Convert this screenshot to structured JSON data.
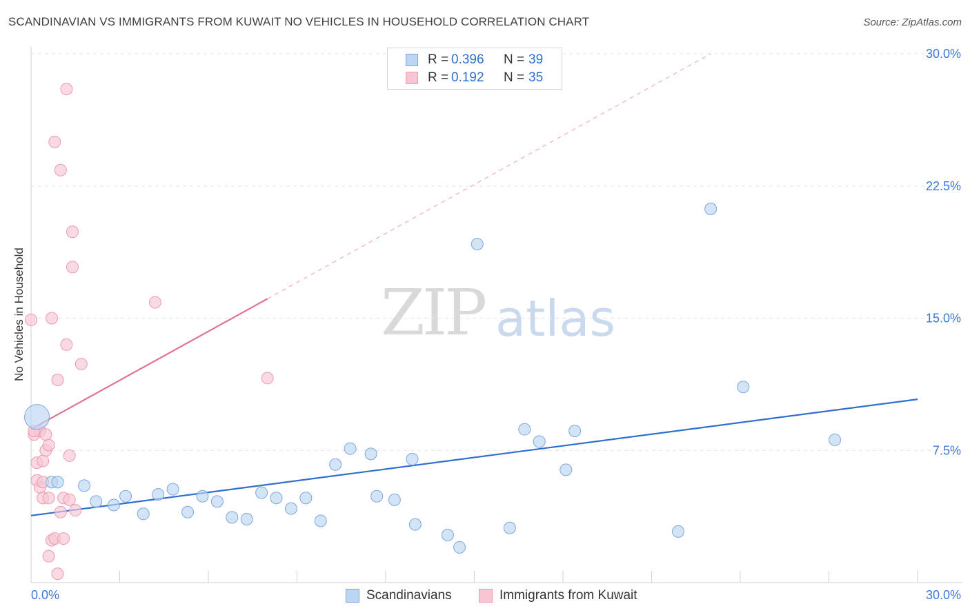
{
  "title": "SCANDINAVIAN VS IMMIGRANTS FROM KUWAIT NO VEHICLES IN HOUSEHOLD CORRELATION CHART",
  "source": "Source: ZipAtlas.com",
  "watermark": {
    "zip": "ZIP",
    "atlas": "atlas"
  },
  "legend": {
    "rows": [
      {
        "r_label": "R =",
        "r_value": "0.396",
        "n_label": "N =",
        "n_value": "39",
        "fill": "#bcd5f2",
        "stroke": "#7ba7de"
      },
      {
        "r_label": "R =",
        "r_value": "0.192",
        "n_label": "N =",
        "n_value": "35",
        "fill": "#f8c6d3",
        "stroke": "#ec9ab0"
      }
    ]
  },
  "bottom_legend": [
    {
      "label": "Scandinavians",
      "fill": "#bcd5f2",
      "stroke": "#7ba7de"
    },
    {
      "label": "Immigrants from Kuwait",
      "fill": "#f8c6d3",
      "stroke": "#ec9ab0"
    }
  ],
  "colors": {
    "blue_fill": "#bcd5f2",
    "blue_stroke": "#7ba7de",
    "blue_line": "#2e6fd0",
    "pink_fill": "#f8c6d3",
    "pink_stroke": "#ec9ab0",
    "pink_line": "#e0719a",
    "grid": "#e3e3e3",
    "tick_label": "#3b78d8"
  },
  "chart_data": {
    "type": "scatter",
    "title": "SCANDINAVIAN VS IMMIGRANTS FROM KUWAIT NO VEHICLES IN HOUSEHOLD CORRELATION CHART",
    "xlabel": "",
    "ylabel": "No Vehicles in Household",
    "xlim": [
      0,
      30
    ],
    "ylim": [
      0,
      30
    ],
    "x_tick_labels": [
      "0.0%",
      "30.0%"
    ],
    "y_tick_labels": [
      "7.5%",
      "15.0%",
      "22.5%",
      "30.0%"
    ],
    "y_ticks": [
      7.5,
      15.0,
      22.5,
      30.0
    ],
    "grid": true,
    "legend_position": "top-center",
    "series": [
      {
        "name": "Scandinavians",
        "color": "#bcd5f2",
        "points": [
          [
            0.2,
            9.4,
            1
          ],
          [
            0.7,
            5.7,
            0
          ],
          [
            1.8,
            5.5,
            0
          ],
          [
            2.2,
            4.6,
            0
          ],
          [
            2.8,
            4.4,
            0
          ],
          [
            3.2,
            4.9,
            0
          ],
          [
            3.8,
            3.9,
            0
          ],
          [
            4.3,
            5.0,
            0
          ],
          [
            4.8,
            5.3,
            0
          ],
          [
            5.3,
            4.0,
            0
          ],
          [
            5.8,
            4.9,
            0
          ],
          [
            6.3,
            4.6,
            0
          ],
          [
            6.8,
            3.7,
            0
          ],
          [
            7.3,
            3.6,
            0
          ],
          [
            7.8,
            5.1,
            0
          ],
          [
            8.3,
            4.8,
            0
          ],
          [
            8.8,
            4.2,
            0
          ],
          [
            9.3,
            4.8,
            0
          ],
          [
            9.8,
            3.5,
            0
          ],
          [
            10.3,
            6.7,
            0
          ],
          [
            10.8,
            7.6,
            0
          ],
          [
            11.5,
            7.3,
            0
          ],
          [
            11.7,
            4.9,
            0
          ],
          [
            12.3,
            4.7,
            0
          ],
          [
            12.9,
            7.0,
            0
          ],
          [
            13.0,
            3.3,
            0
          ],
          [
            14.1,
            2.7,
            0
          ],
          [
            14.5,
            2.0,
            0
          ],
          [
            15.1,
            19.2,
            0
          ],
          [
            16.2,
            3.1,
            0
          ],
          [
            16.7,
            8.7,
            0
          ],
          [
            17.2,
            8.0,
            0
          ],
          [
            18.1,
            6.4,
            0
          ],
          [
            18.4,
            8.6,
            0
          ],
          [
            21.9,
            2.9,
            0
          ],
          [
            23.0,
            21.2,
            0
          ],
          [
            24.1,
            11.1,
            0
          ],
          [
            27.2,
            8.1,
            0
          ],
          [
            0.9,
            5.7,
            0
          ]
        ],
        "trend": {
          "x": [
            0,
            30
          ],
          "y": [
            3.8,
            10.4
          ]
        }
      },
      {
        "name": "Immigrants from Kuwait",
        "color": "#f8c6d3",
        "points": [
          [
            0.0,
            14.9,
            0
          ],
          [
            0.1,
            8.4,
            0
          ],
          [
            0.2,
            6.8,
            0
          ],
          [
            0.2,
            5.8,
            0
          ],
          [
            0.3,
            5.4,
            0
          ],
          [
            0.3,
            8.6,
            0
          ],
          [
            0.4,
            6.9,
            0
          ],
          [
            0.4,
            5.7,
            0
          ],
          [
            0.4,
            4.8,
            0
          ],
          [
            0.5,
            8.4,
            0
          ],
          [
            0.5,
            7.5,
            0
          ],
          [
            0.6,
            7.8,
            0
          ],
          [
            0.6,
            4.8,
            0
          ],
          [
            0.6,
            1.5,
            0
          ],
          [
            0.7,
            2.4,
            0
          ],
          [
            0.7,
            15.0,
            0
          ],
          [
            0.8,
            2.5,
            0
          ],
          [
            0.8,
            25.0,
            0
          ],
          [
            0.9,
            11.5,
            0
          ],
          [
            0.9,
            0.5,
            0
          ],
          [
            1.0,
            4.0,
            0
          ],
          [
            1.0,
            23.4,
            0
          ],
          [
            1.1,
            2.5,
            0
          ],
          [
            1.1,
            4.8,
            0
          ],
          [
            1.2,
            13.5,
            0
          ],
          [
            1.2,
            28.0,
            0
          ],
          [
            1.3,
            4.7,
            0
          ],
          [
            1.3,
            7.2,
            0
          ],
          [
            1.4,
            19.9,
            0
          ],
          [
            1.4,
            17.9,
            0
          ],
          [
            1.5,
            4.1,
            0
          ],
          [
            1.7,
            12.4,
            0
          ],
          [
            4.2,
            15.9,
            0
          ],
          [
            8.0,
            11.6,
            0
          ],
          [
            0.1,
            8.6,
            0
          ]
        ],
        "trend": {
          "x": [
            0,
            8
          ],
          "y": [
            8.7,
            16.1
          ]
        },
        "trend_extension": {
          "x": [
            8,
            23
          ],
          "y": [
            16.1,
            30.0
          ]
        }
      }
    ]
  }
}
